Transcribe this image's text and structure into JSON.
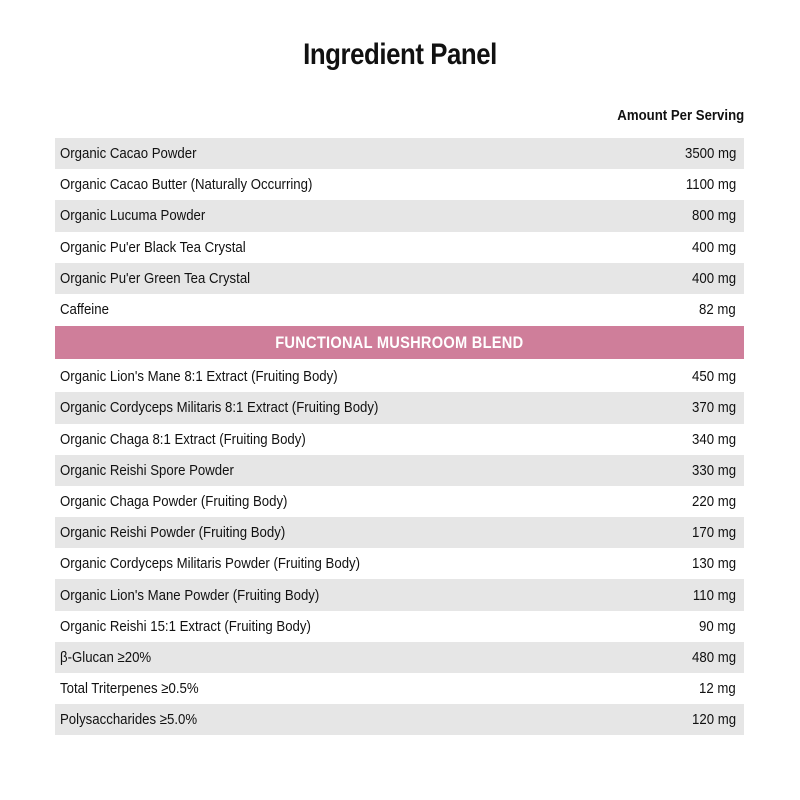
{
  "title": "Ingredient Panel",
  "column_header": "Amount Per Serving",
  "accent_color": "#cf7e9a",
  "row_shade_color": "#e6e6e6",
  "main_ingredients": [
    {
      "name": "Organic Cacao Powder",
      "amount": "3500 mg"
    },
    {
      "name": "Organic Cacao Butter (Naturally Occurring)",
      "amount": "1100 mg"
    },
    {
      "name": "Organic Lucuma Powder",
      "amount": "800 mg"
    },
    {
      "name": "Organic Pu'er Black Tea Crystal",
      "amount": "400 mg"
    },
    {
      "name": "Organic Pu'er Green Tea Crystal",
      "amount": "400 mg"
    },
    {
      "name": "Caffeine",
      "amount": "82 mg"
    }
  ],
  "blend_header": "FUNCTIONAL MUSHROOM BLEND",
  "blend_ingredients": [
    {
      "name": "Organic Lion's Mane 8:1 Extract (Fruiting Body)",
      "amount": "450 mg"
    },
    {
      "name": "Organic Cordyceps Militaris 8:1 Extract (Fruiting Body)",
      "amount": "370 mg"
    },
    {
      "name": "Organic Chaga 8:1 Extract (Fruiting Body)",
      "amount": "340 mg"
    },
    {
      "name": "Organic Reishi  Spore Powder",
      "amount": "330 mg"
    },
    {
      "name": "Organic Chaga Powder (Fruiting Body)",
      "amount": "220 mg"
    },
    {
      "name": "Organic Reishi Powder (Fruiting Body)",
      "amount": "170 mg"
    },
    {
      "name": "Organic Cordyceps Militaris Powder (Fruiting Body)",
      "amount": "130 mg"
    },
    {
      "name": "Organic Lion's Mane Powder (Fruiting Body)",
      "amount": "110 mg"
    },
    {
      "name": "Organic Reishi 15:1 Extract (Fruiting Body)",
      "amount": "90 mg"
    },
    {
      "name": "β-Glucan ≥20%",
      "amount": "480 mg"
    },
    {
      "name": "Total Triterpenes ≥0.5%",
      "amount": "12 mg"
    },
    {
      "name": "Polysaccharides ≥5.0%",
      "amount": "120 mg"
    }
  ]
}
